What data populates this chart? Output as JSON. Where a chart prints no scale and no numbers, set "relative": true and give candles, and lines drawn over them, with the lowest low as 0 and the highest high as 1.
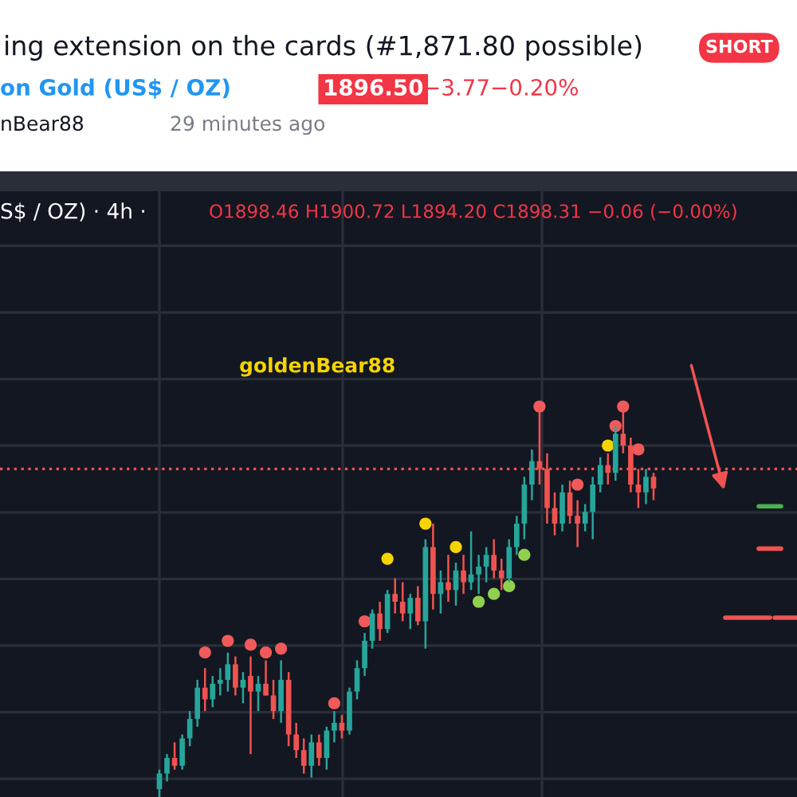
{
  "chart_data": {
    "type": "candlestick",
    "title": "ing extension on the cards (#1,871.80 possible)",
    "subtitle": "on Gold (US$ / OZ)",
    "annotations": [
      "1896.50",
      "−3.77",
      "−0.20%",
      "SHORT",
      "nBear88",
      "29 minutes ago",
      "S$ / OZ) · 4h ·",
      "O1898.46 H1900.72 L1894.20 C1898.31 −0.06 (−0.00%)",
      "goldenBear88"
    ],
    "relative": true,
    "grid": true,
    "categories": [
      null,
      null,
      null,
      null,
      null,
      null,
      null,
      null,
      null,
      null,
      null,
      null,
      null,
      null,
      null,
      null,
      null,
      null,
      null,
      null,
      null,
      null,
      null,
      null,
      null,
      null,
      null,
      null,
      null,
      null,
      null,
      null,
      null,
      null,
      null,
      null,
      null,
      null,
      null,
      null,
      null,
      null,
      null,
      null,
      null,
      null,
      null,
      null,
      null,
      null,
      null,
      null,
      null,
      null,
      null,
      null,
      null,
      null,
      null,
      null,
      null,
      null,
      null,
      null,
      null,
      null
    ],
    "ohlc": [
      [
        0.02,
        0.07,
        0.0,
        0.06
      ],
      [
        0.06,
        0.11,
        0.04,
        0.1
      ],
      [
        0.1,
        0.14,
        0.07,
        0.08
      ],
      [
        0.08,
        0.16,
        0.07,
        0.15
      ],
      [
        0.15,
        0.22,
        0.13,
        0.2
      ],
      [
        0.2,
        0.3,
        0.18,
        0.28
      ],
      [
        0.28,
        0.33,
        0.22,
        0.25
      ],
      [
        0.25,
        0.31,
        0.23,
        0.29
      ],
      [
        0.29,
        0.33,
        0.26,
        0.3
      ],
      [
        0.3,
        0.37,
        0.27,
        0.34
      ],
      [
        0.34,
        0.36,
        0.26,
        0.28
      ],
      [
        0.28,
        0.32,
        0.24,
        0.3
      ],
      [
        0.31,
        0.36,
        0.11,
        0.27
      ],
      [
        0.27,
        0.31,
        0.22,
        0.29
      ],
      [
        0.29,
        0.35,
        0.26,
        0.26
      ],
      [
        0.26,
        0.3,
        0.2,
        0.22
      ],
      [
        0.22,
        0.35,
        0.19,
        0.3
      ],
      [
        0.3,
        0.32,
        0.13,
        0.16
      ],
      [
        0.16,
        0.19,
        0.1,
        0.12
      ],
      [
        0.12,
        0.15,
        0.06,
        0.08
      ],
      [
        0.08,
        0.16,
        0.05,
        0.14
      ],
      [
        0.14,
        0.16,
        0.08,
        0.1
      ],
      [
        0.1,
        0.18,
        0.07,
        0.17
      ],
      [
        0.17,
        0.22,
        0.14,
        0.19
      ],
      [
        0.19,
        0.21,
        0.15,
        0.17
      ],
      [
        0.17,
        0.28,
        0.16,
        0.27
      ],
      [
        0.27,
        0.35,
        0.25,
        0.33
      ],
      [
        0.33,
        0.42,
        0.31,
        0.4
      ],
      [
        0.4,
        0.48,
        0.38,
        0.47
      ],
      [
        0.47,
        0.5,
        0.4,
        0.43
      ],
      [
        0.43,
        0.53,
        0.42,
        0.52
      ],
      [
        0.52,
        0.56,
        0.47,
        0.5
      ],
      [
        0.5,
        0.55,
        0.45,
        0.47
      ],
      [
        0.47,
        0.52,
        0.43,
        0.51
      ],
      [
        0.51,
        0.54,
        0.44,
        0.45
      ],
      [
        0.45,
        0.66,
        0.38,
        0.64
      ],
      [
        0.64,
        0.7,
        0.48,
        0.52
      ],
      [
        0.52,
        0.58,
        0.47,
        0.55
      ],
      [
        0.55,
        0.62,
        0.5,
        0.53
      ],
      [
        0.53,
        0.6,
        0.49,
        0.58
      ],
      [
        0.58,
        0.62,
        0.52,
        0.55
      ],
      [
        0.55,
        0.68,
        0.53,
        0.57
      ],
      [
        0.57,
        0.62,
        0.52,
        0.59
      ],
      [
        0.59,
        0.64,
        0.55,
        0.62
      ],
      [
        0.62,
        0.66,
        0.56,
        0.58
      ],
      [
        0.58,
        0.61,
        0.53,
        0.56
      ],
      [
        0.56,
        0.66,
        0.55,
        0.64
      ],
      [
        0.64,
        0.72,
        0.62,
        0.7
      ],
      [
        0.7,
        0.82,
        0.66,
        0.8
      ],
      [
        0.8,
        0.89,
        0.76,
        0.86
      ],
      [
        0.86,
        1.0,
        0.8,
        0.84
      ],
      [
        0.84,
        0.88,
        0.7,
        0.74
      ],
      [
        0.74,
        0.78,
        0.67,
        0.7
      ],
      [
        0.7,
        0.8,
        0.68,
        0.78
      ],
      [
        0.78,
        0.81,
        0.7,
        0.72
      ],
      [
        0.72,
        0.76,
        0.64,
        0.7
      ],
      [
        0.7,
        0.75,
        0.68,
        0.73
      ],
      [
        0.73,
        0.82,
        0.66,
        0.8
      ],
      [
        0.8,
        0.87,
        0.78,
        0.85
      ],
      [
        0.85,
        0.88,
        0.8,
        0.83
      ],
      [
        0.83,
        0.95,
        0.81,
        0.93
      ],
      [
        0.93,
        1.0,
        0.88,
        0.9
      ],
      [
        0.9,
        0.92,
        0.78,
        0.8
      ],
      [
        0.8,
        0.84,
        0.74,
        0.78
      ],
      [
        0.78,
        0.84,
        0.75,
        0.82
      ],
      [
        0.82,
        0.83,
        0.76,
        0.79
      ]
    ],
    "series": [
      {
        "type": "scatter",
        "marker": "circle",
        "values": [
          null,
          null,
          null,
          null,
          null,
          null,
          0.37,
          null,
          null,
          0.4,
          null,
          null,
          0.39,
          null,
          0.37,
          null,
          0.38,
          null,
          null,
          null,
          null,
          null,
          null,
          0.24,
          null,
          null,
          null,
          0.45,
          null,
          null,
          0.61,
          null,
          null,
          null,
          null,
          0.7,
          null,
          null,
          null,
          0.64,
          null,
          null,
          0.5,
          null,
          0.52,
          null,
          0.54,
          null,
          0.62,
          null,
          1.0,
          null,
          null,
          null,
          null,
          0.8,
          null,
          null,
          null,
          0.9,
          0.95,
          1.0,
          null,
          0.89,
          null,
          null
        ],
        "colors": [
          null,
          null,
          null,
          null,
          null,
          null,
          "#f05a5a",
          null,
          null,
          "#f05a5a",
          null,
          null,
          "#f05a5a",
          null,
          "#f05a5a",
          null,
          "#f05a5a",
          null,
          null,
          null,
          null,
          null,
          null,
          "#f05a5a",
          null,
          null,
          null,
          "#f05a5a",
          null,
          null,
          "#f5d400",
          null,
          null,
          null,
          null,
          "#f5d400",
          null,
          null,
          null,
          "#f5d400",
          null,
          null,
          "#8fd14f",
          null,
          "#8fd14f",
          null,
          "#8fd14f",
          null,
          "#8fd14f",
          null,
          "#f05a5a",
          null,
          null,
          null,
          null,
          "#f05a5a",
          null,
          null,
          null,
          "#f5d400",
          "#f05a5a",
          "#f05a5a",
          null,
          "#f05a5a",
          null,
          null
        ]
      }
    ],
    "ref_lines": [
      {
        "axis": "y",
        "value": 0.84,
        "color": "#ef5350",
        "line_style": "dotted"
      }
    ]
  }
}
